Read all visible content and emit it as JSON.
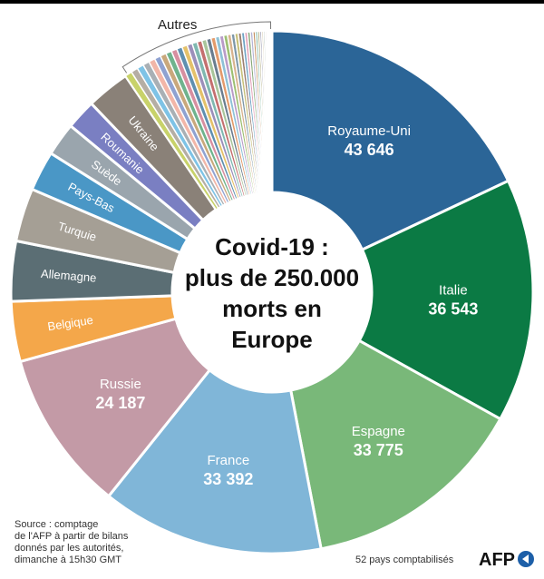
{
  "chart_data": {
    "type": "pie",
    "title_lines": [
      "Covid-19 :",
      "plus de 250.000",
      "morts en",
      "Europe"
    ],
    "slices": [
      {
        "label": "Royaume-Uni",
        "value": 43646,
        "value_label": "43 646",
        "color": "#2b6597",
        "text": "#ffffff"
      },
      {
        "label": "Italie",
        "value": 36543,
        "value_label": "36 543",
        "color": "#0b7a44",
        "text": "#ffffff"
      },
      {
        "label": "Espagne",
        "value": 33775,
        "value_label": "33 775",
        "color": "#79b879",
        "text": "#ffffff"
      },
      {
        "label": "France",
        "value": 33392,
        "value_label": "33 392",
        "color": "#80b6d8",
        "text": "#ffffff"
      },
      {
        "label": "Russie",
        "value": 24187,
        "value_label": "24 187",
        "color": "#c39aa6",
        "text": "#ffffff"
      },
      {
        "label": "Belgique",
        "value": 9000,
        "value_label": "",
        "color": "#f4a74a",
        "text": "#ffffff"
      },
      {
        "label": "Allemagne",
        "value": 9000,
        "value_label": "",
        "color": "#5b6e74",
        "text": "#ffffff"
      },
      {
        "label": "Turquie",
        "value": 8000,
        "value_label": "",
        "color": "#a59f95",
        "text": "#ffffff"
      },
      {
        "label": "Pays-Bas",
        "value": 6000,
        "value_label": "",
        "color": "#4a97c6",
        "text": "#ffffff"
      },
      {
        "label": "Suède",
        "value": 5000,
        "value_label": "",
        "color": "#9aa5ad",
        "text": "#ffffff"
      },
      {
        "label": "Roumanie",
        "value": 4500,
        "value_label": "",
        "color": "#7a7fc2",
        "text": "#ffffff"
      },
      {
        "label": "Ukraine",
        "value": 6500,
        "value_label": "",
        "color": "#8a8178",
        "text": "#ffffff"
      }
    ],
    "others": {
      "label": "Autres",
      "value": 23000,
      "colors": [
        "#c8d26a",
        "#b5aea4",
        "#7ec3e6",
        "#a9b0b5",
        "#f2b6a8",
        "#8fa2d1",
        "#c9a87c",
        "#6fb38d",
        "#d78fa0",
        "#5f8fb0",
        "#e4c16a",
        "#9c8fba",
        "#7fb8b0",
        "#c46f6f",
        "#a8c49a",
        "#6a7d8f",
        "#e39a6b",
        "#8ec1d6",
        "#b99bc8",
        "#9dbf72",
        "#d8b38e",
        "#7d97a8",
        "#c7c07a",
        "#9c7f72",
        "#6fa3c4",
        "#e2a0b8",
        "#88a97a",
        "#b4b4d6",
        "#c48f5f",
        "#7cb5a0",
        "#a6a06e",
        "#8f8fa8",
        "#d1c4a4",
        "#6f8f7a",
        "#c4a1a1",
        "#9fc1c4",
        "#b0a070",
        "#888888",
        "#a4b8d0",
        "#c8c8a0"
      ]
    }
  },
  "source": {
    "lines": [
      "Source : comptage",
      "de l'AFP à partir de bilans",
      "donnés par les autorités,",
      "dimanche à 15h30 GMT"
    ]
  },
  "countries_count": "52 pays comptabilisés",
  "logo_text": "AFP"
}
